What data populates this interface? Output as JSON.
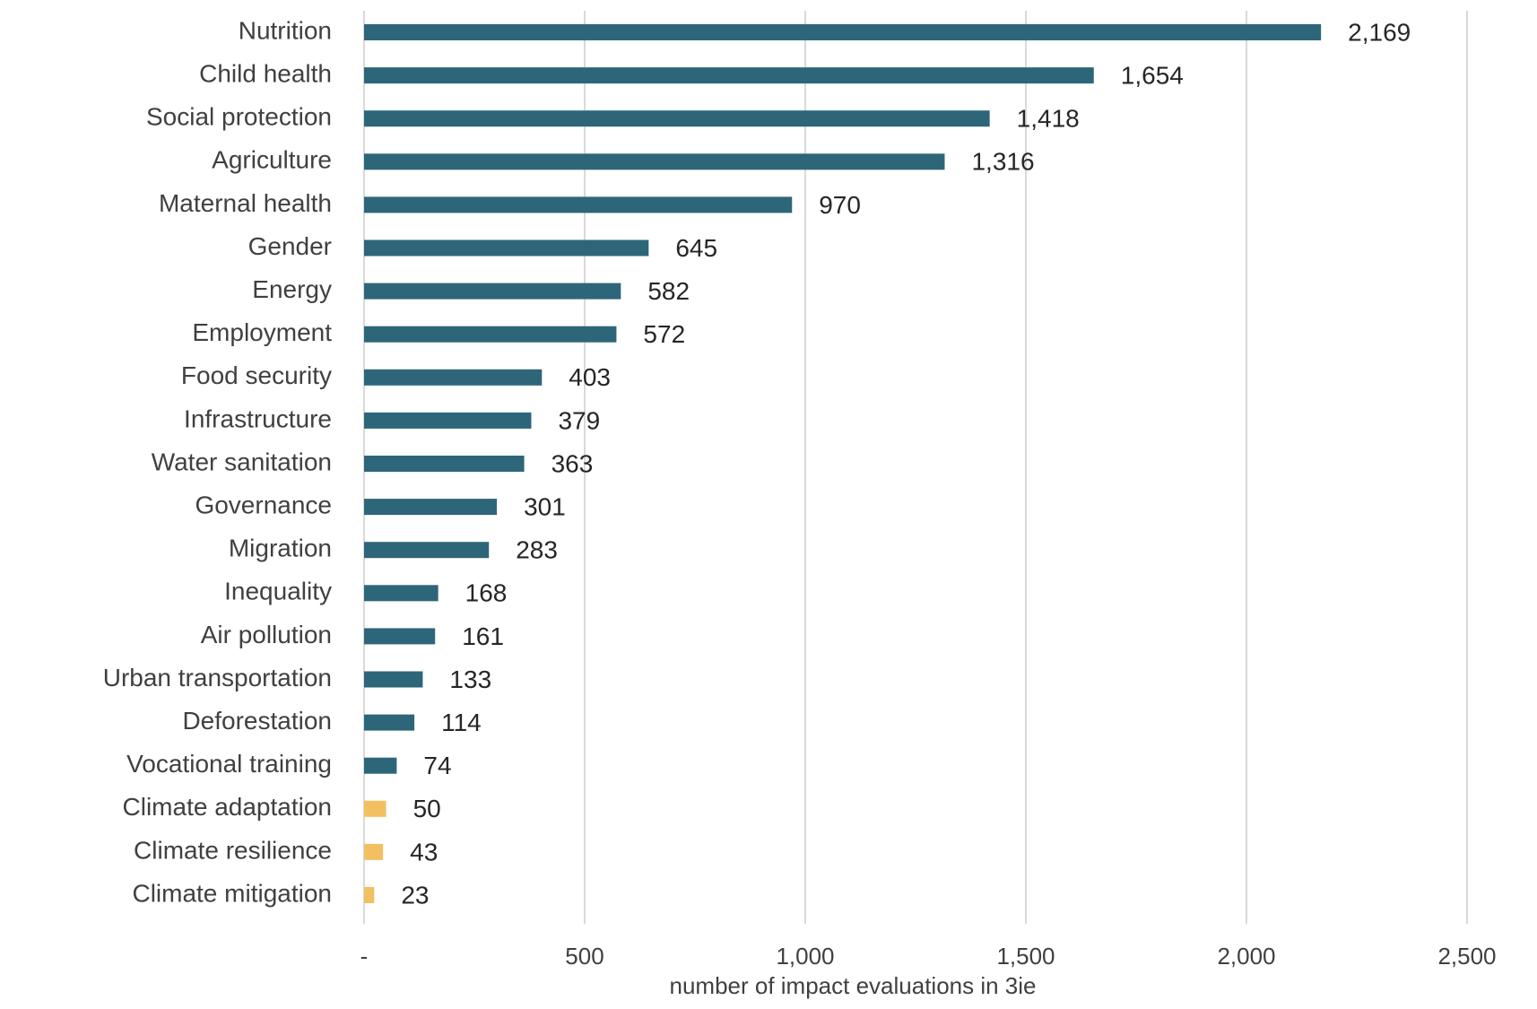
{
  "chart_data": {
    "type": "bar",
    "orientation": "horizontal",
    "title": "",
    "xlabel": "number of impact evaluations in 3ie",
    "ylabel": "",
    "xlim": [
      0,
      2500
    ],
    "x_ticks": [
      0,
      500,
      1000,
      1500,
      2000,
      2500
    ],
    "x_tick_labels": [
      "-",
      "500",
      "1,000",
      "1,500",
      "2,000",
      "2,500"
    ],
    "grid": true,
    "legend": "none",
    "categories": [
      "Nutrition",
      "Child health",
      "Social protection",
      "Agriculture",
      "Maternal health",
      "Gender",
      "Energy",
      "Employment",
      "Food security",
      "Infrastructure",
      "Water sanitation",
      "Governance",
      "Migration",
      "Inequality",
      "Air pollution",
      "Urban transportation",
      "Deforestation",
      "Vocational training",
      "Climate adaptation",
      "Climate resilience",
      "Climate mitigation"
    ],
    "values": [
      2169,
      1654,
      1418,
      1316,
      970,
      645,
      582,
      572,
      403,
      379,
      363,
      301,
      283,
      168,
      161,
      133,
      114,
      74,
      50,
      43,
      23
    ],
    "value_labels": [
      "2,169",
      "1,654",
      "1,418",
      "1,316",
      "970",
      "645",
      "582",
      "572",
      "403",
      "379",
      "363",
      "301",
      "283",
      "168",
      "161",
      "133",
      "114",
      "74",
      "50",
      "43",
      "23"
    ],
    "highlighted": [
      false,
      false,
      false,
      false,
      false,
      false,
      false,
      false,
      false,
      false,
      false,
      false,
      false,
      false,
      false,
      false,
      false,
      false,
      true,
      true,
      true
    ],
    "colors": {
      "default_bar": "#2e6679",
      "highlight_bar": "#f2c061",
      "grid": "#d9d9d9"
    }
  }
}
